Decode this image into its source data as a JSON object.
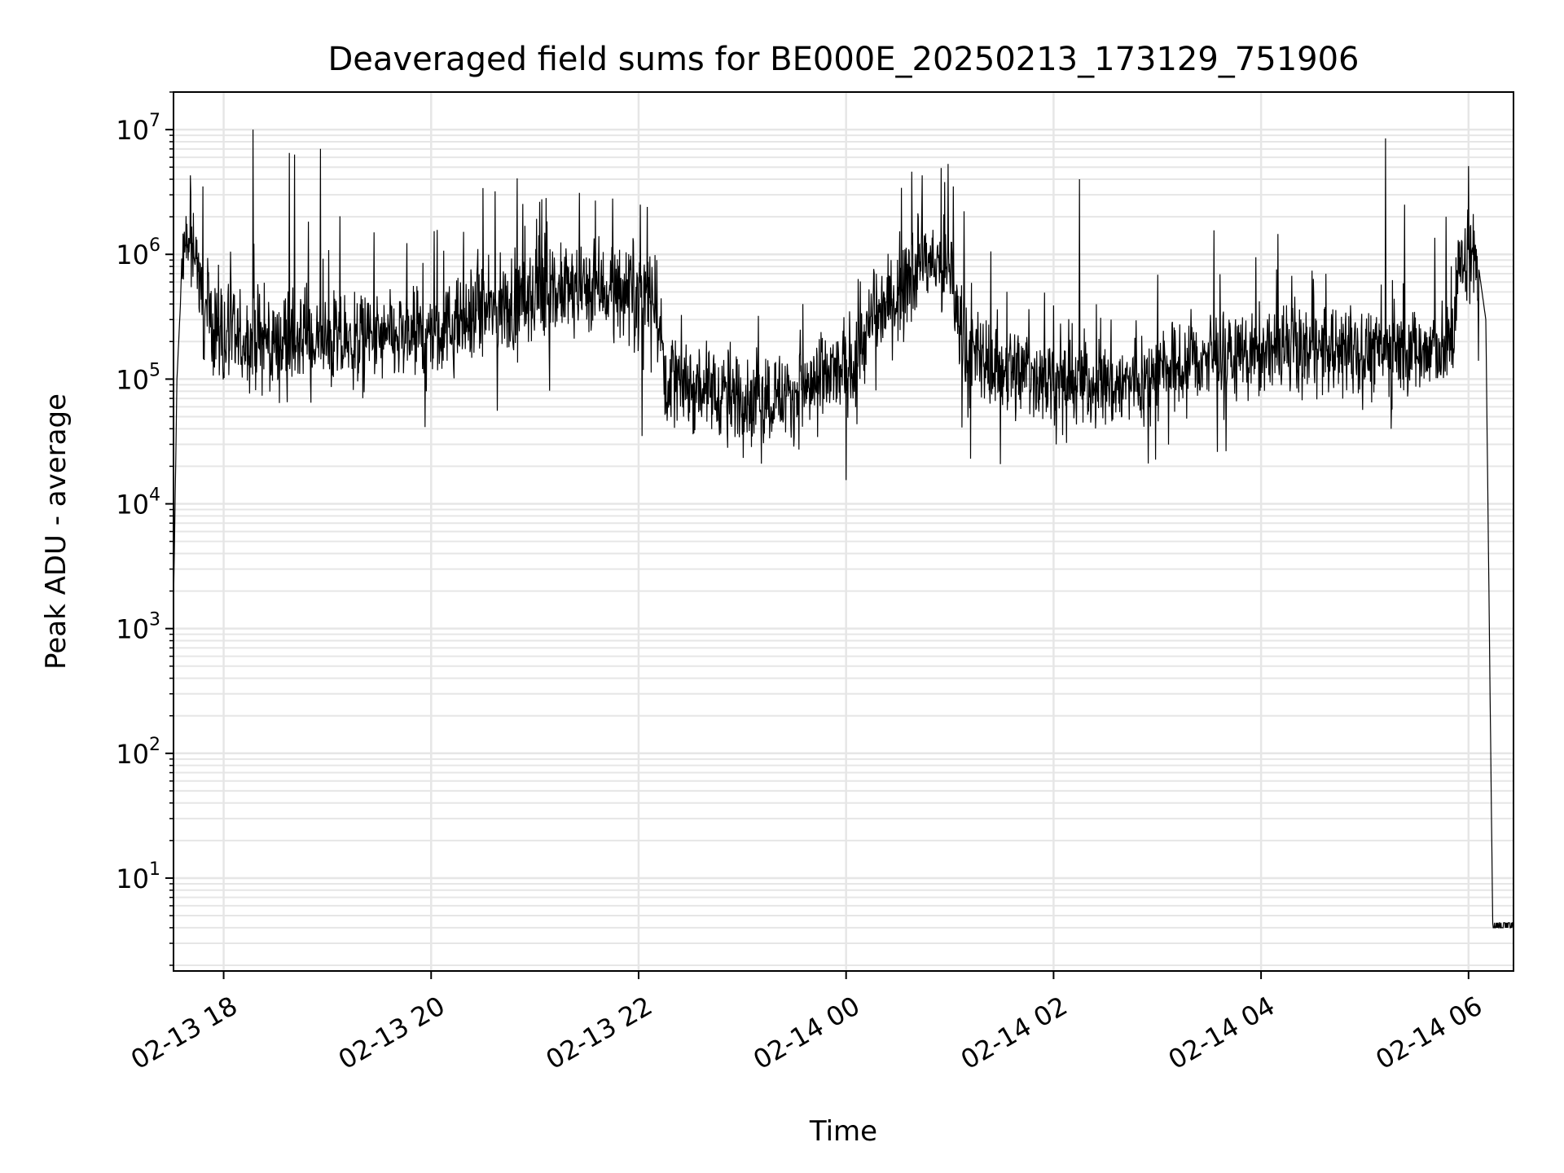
{
  "chart_data": {
    "type": "line",
    "title": "Deaveraged field sums for BE000E_20250213_173129_751906",
    "xlabel": "Time",
    "ylabel": "Peak ADU - average",
    "yscale": "log",
    "ylim": [
      1.8,
      20000000
    ],
    "xlim": [
      "2025-02-13 17:31",
      "2025-02-14 06:26"
    ],
    "grid": true,
    "x_ticks": [
      {
        "t": "2025-02-13 18:00",
        "label": "02-13 18"
      },
      {
        "t": "2025-02-13 20:00",
        "label": "02-13 20"
      },
      {
        "t": "2025-02-13 22:00",
        "label": "02-13 22"
      },
      {
        "t": "2025-02-14 00:00",
        "label": "02-14 00"
      },
      {
        "t": "2025-02-14 02:00",
        "label": "02-14 02"
      },
      {
        "t": "2025-02-14 04:00",
        "label": "02-14 04"
      },
      {
        "t": "2025-02-14 06:00",
        "label": "02-14 06"
      }
    ],
    "y_ticks": [
      {
        "v": 10,
        "base": "10",
        "exp": "1"
      },
      {
        "v": 100,
        "base": "10",
        "exp": "2"
      },
      {
        "v": 1000,
        "base": "10",
        "exp": "3"
      },
      {
        "v": 10000,
        "base": "10",
        "exp": "4"
      },
      {
        "v": 100000,
        "base": "10",
        "exp": "5"
      },
      {
        "v": 1000000,
        "base": "10",
        "exp": "6"
      },
      {
        "v": 10000000,
        "base": "10",
        "exp": "7"
      }
    ],
    "series": [
      {
        "color": "#000000",
        "baseline_profile": [
          {
            "t": "2025-02-13 17:31",
            "y": 1500
          },
          {
            "t": "2025-02-13 17:33",
            "y": 100000
          },
          {
            "t": "2025-02-13 17:36",
            "y": 800000
          },
          {
            "t": "2025-02-13 17:43",
            "y": 1400000
          },
          {
            "t": "2025-02-13 17:48",
            "y": 350000
          },
          {
            "t": "2025-02-13 18:05",
            "y": 200000
          },
          {
            "t": "2025-02-13 19:00",
            "y": 190000
          },
          {
            "t": "2025-02-13 20:00",
            "y": 220000
          },
          {
            "t": "2025-02-13 20:30",
            "y": 330000
          },
          {
            "t": "2025-02-13 21:00",
            "y": 450000
          },
          {
            "t": "2025-02-13 21:30",
            "y": 550000
          },
          {
            "t": "2025-02-13 22:10",
            "y": 500000
          },
          {
            "t": "2025-02-13 22:15",
            "y": 110000
          },
          {
            "t": "2025-02-13 23:00",
            "y": 70000
          },
          {
            "t": "2025-02-13 23:30",
            "y": 75000
          },
          {
            "t": "2025-02-14 00:00",
            "y": 120000
          },
          {
            "t": "2025-02-14 00:20",
            "y": 350000
          },
          {
            "t": "2025-02-14 00:45",
            "y": 900000
          },
          {
            "t": "2025-02-14 01:00",
            "y": 700000
          },
          {
            "t": "2025-02-14 01:10",
            "y": 150000
          },
          {
            "t": "2025-02-14 02:00",
            "y": 100000
          },
          {
            "t": "2025-02-14 02:40",
            "y": 90000
          },
          {
            "t": "2025-02-14 03:30",
            "y": 150000
          },
          {
            "t": "2025-02-14 04:30",
            "y": 170000
          },
          {
            "t": "2025-02-14 05:50",
            "y": 170000
          },
          {
            "t": "2025-02-14 05:54",
            "y": 700000
          },
          {
            "t": "2025-02-14 06:00",
            "y": 1000000
          },
          {
            "t": "2025-02-14 06:05",
            "y": 950000
          },
          {
            "t": "2025-02-14 06:10",
            "y": 300000
          },
          {
            "t": "2025-02-14 06:14",
            "y": 4
          },
          {
            "t": "2025-02-14 06:26",
            "y": 4
          }
        ],
        "noise_amplitude_decades": 0.35,
        "spikes": [
          {
            "t": "2025-02-13 17:48",
            "y": 3500000
          },
          {
            "t": "2025-02-13 18:17",
            "y": 10000000
          },
          {
            "t": "2025-02-13 18:38",
            "y": 6500000
          },
          {
            "t": "2025-02-13 18:41",
            "y": 6300000
          },
          {
            "t": "2025-02-13 18:56",
            "y": 7000000
          },
          {
            "t": "2025-02-13 19:27",
            "y": 1500000
          },
          {
            "t": "2025-02-13 20:30",
            "y": 3400000
          },
          {
            "t": "2025-02-13 20:37",
            "y": 3200000
          },
          {
            "t": "2025-02-13 21:35",
            "y": 2700000
          },
          {
            "t": "2025-02-13 21:45",
            "y": 2800000
          },
          {
            "t": "2025-02-13 22:01",
            "y": 2500000
          },
          {
            "t": "2025-02-13 22:05",
            "y": 2400000
          },
          {
            "t": "2025-02-13 23:35",
            "y": 400000
          },
          {
            "t": "2025-02-14 00:00",
            "y": 900000
          },
          {
            "t": "2025-02-14 00:38",
            "y": 4600000
          },
          {
            "t": "2025-02-14 00:44",
            "y": 4300000
          },
          {
            "t": "2025-02-14 00:57",
            "y": 3800000
          },
          {
            "t": "2025-02-14 00:59",
            "y": 5300000
          },
          {
            "t": "2025-02-14 01:02",
            "y": 3500000
          },
          {
            "t": "2025-02-14 02:15",
            "y": 4000000
          },
          {
            "t": "2025-02-14 05:12",
            "y": 8500000
          },
          {
            "t": "2025-02-14 05:23",
            "y": 2500000
          },
          {
            "t": "2025-02-14 05:47",
            "y": 2000000
          },
          {
            "t": "2025-02-14 06:00",
            "y": 5100000
          }
        ],
        "dips": [
          {
            "t": "2025-02-13 22:02",
            "y": 35000
          },
          {
            "t": "2025-02-13 23:11",
            "y": 21000
          },
          {
            "t": "2025-02-14 00:00",
            "y": 15500
          },
          {
            "t": "2025-02-14 01:12",
            "y": 23000
          }
        ]
      }
    ]
  }
}
